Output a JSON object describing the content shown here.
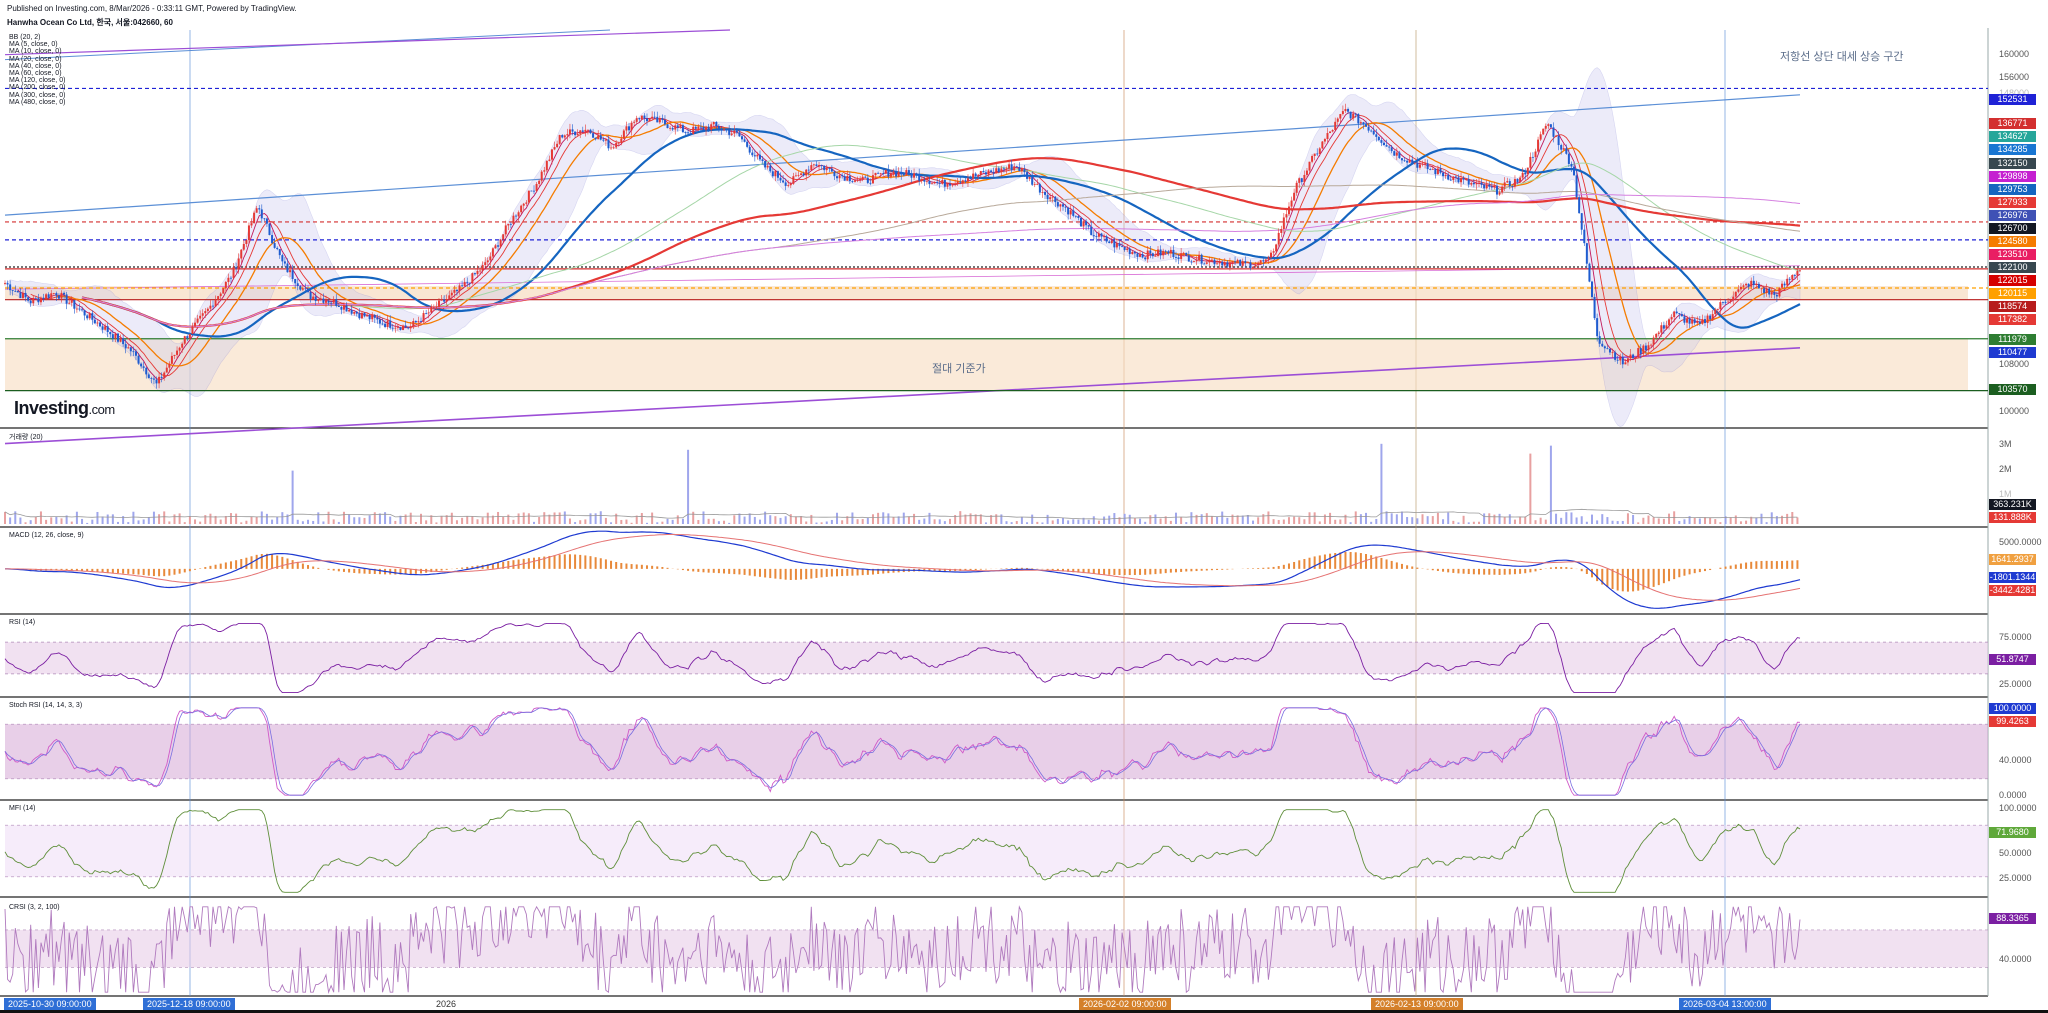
{
  "header": {
    "published": "Published on Investing.com, 8/Mar/2026 - 0:33:11 GMT, Powered by TradingView.",
    "symbol": "Hanwha Ocean Co Ltd, 한국, 서울:042660, 60"
  },
  "legend": [
    "BB (20, 2)",
    "MA (5, close, 0)",
    "MA (10, close, 0)",
    "MA (20, close, 0)",
    "MA (40, close, 0)",
    "MA (60, close, 0)",
    "MA (120, close, 0)",
    "MA (200, close, 0)",
    "MA (300, close, 0)",
    "MA (480, close, 0)"
  ],
  "logo": {
    "brand": "Investing",
    "suffix": ".com"
  },
  "annotations": {
    "upper": "저항선 상단 대세 상승 구간",
    "lower": "절대 기준가"
  },
  "pane_titles": {
    "volume": "거래량 (20)",
    "macd": "MACD (12, 26, close, 9)",
    "rsi": "RSI (14)",
    "stoch": "Stoch RSI (14, 14, 3, 3)",
    "mfi": "MFI (14)",
    "crsi": "CRSI (3, 2, 100)"
  },
  "price_axis": [
    "160000",
    "156000",
    "148000",
    "108000",
    "100000"
  ],
  "price_badges": [
    {
      "text": "152531",
      "color": "#1f22d6"
    },
    {
      "text": "136771",
      "color": "#d32f2f"
    },
    {
      "text": "134627",
      "color": "#26a69a"
    },
    {
      "text": "134285",
      "color": "#1976d2"
    },
    {
      "text": "132150",
      "color": "#37474f"
    },
    {
      "text": "129898",
      "color": "#c51fd1"
    },
    {
      "text": "129753",
      "color": "#1565c0"
    },
    {
      "text": "127933",
      "color": "#e53935"
    },
    {
      "text": "126976",
      "color": "#3f51b5"
    },
    {
      "text": "126700",
      "color": "#131722"
    },
    {
      "text": "124580",
      "color": "#f57c00"
    },
    {
      "text": "123510",
      "color": "#e91e63"
    },
    {
      "text": "122100",
      "color": "#37474f"
    },
    {
      "text": "122015",
      "color": "#d50000"
    },
    {
      "text": "120115",
      "color": "#ffa000"
    },
    {
      "text": "118574",
      "color": "#b71c1c"
    },
    {
      "text": "117382",
      "color": "#e53935"
    },
    {
      "text": "111979",
      "color": "#2e7d32"
    },
    {
      "text": "110477",
      "color": "#1e3ad1"
    },
    {
      "text": "103570",
      "color": "#1b5e20"
    }
  ],
  "volume_axis": [
    "3M",
    "2M",
    "1M"
  ],
  "volume_badges": [
    {
      "text": "363.231K",
      "color": "#131722"
    },
    {
      "text": "131.888K",
      "color": "#e53935"
    }
  ],
  "macd_axis": [
    "5000.0000"
  ],
  "macd_badges": [
    {
      "text": "1641.2937",
      "color": "#f0a040"
    },
    {
      "text": "-1801.1344",
      "color": "#1e3ad1"
    },
    {
      "text": "-3442.4281",
      "color": "#e53935"
    }
  ],
  "rsi_axis": [
    "75.0000",
    "25.0000"
  ],
  "rsi_badges": [
    {
      "text": "51.8747",
      "color": "#7b1fa2"
    }
  ],
  "stoch_axis": [
    "40.0000",
    "0.0000"
  ],
  "stoch_badges": [
    {
      "text": "100.0000",
      "color": "#1e3ad1"
    },
    {
      "text": "99.4263",
      "color": "#e53935"
    }
  ],
  "mfi_axis": [
    "100.0000",
    "50.0000",
    "25.0000"
  ],
  "mfi_badges": [
    {
      "text": "71.9680",
      "color": "#5fa83a"
    }
  ],
  "crsi_axis": [
    "40.0000"
  ],
  "crsi_badges": [
    {
      "text": "88.3365",
      "color": "#7b1fa2"
    }
  ],
  "x_axis": [
    {
      "text": "2025-10-30 09:00:00",
      "highlight": true,
      "color": "#2f6fd6"
    },
    {
      "text": "2025-12-18 09:00:00",
      "highlight": true,
      "color": "#2f6fd6"
    },
    {
      "text": "2026",
      "highlight": false,
      "color": ""
    },
    {
      "text": "2026-02-02 09:00:00",
      "highlight": true,
      "color": "#d4802a"
    },
    {
      "text": "2026-02-13 09:00:00",
      "highlight": true,
      "color": "#d4802a"
    },
    {
      "text": "2026-03-04 13:00:00",
      "highlight": true,
      "color": "#2f6fd6"
    }
  ],
  "chart_data": {
    "type": "line",
    "title": "Hanwha Ocean Co Ltd, 한국, 서울:042660, 60",
    "ylim": [
      98000,
      162000
    ],
    "price_path_close": [
      121000,
      118000,
      119500,
      116500,
      113500,
      110000,
      104500,
      111500,
      116500,
      122500,
      133500,
      124000,
      119000,
      118000,
      116000,
      114500,
      113800,
      117000,
      120000,
      124000,
      131000,
      137000,
      145000,
      146000,
      143000,
      148000,
      147000,
      145500,
      146500,
      145000,
      140000,
      137000,
      140500,
      138500,
      137500,
      139000,
      138500,
      137000,
      138000,
      139000,
      140000,
      136000,
      133000,
      129000,
      127000,
      125500,
      126000,
      125000,
      124500,
      124000,
      124500,
      136000,
      143000,
      149000,
      146000,
      142000,
      140000,
      138500,
      137000,
      136000,
      138000,
      147000,
      140000,
      112000,
      108000,
      111000,
      116000,
      114000,
      118000,
      121000,
      119000,
      123500
    ],
    "horizontal_levels": [
      152531,
      130900,
      128000,
      123600,
      123300,
      120200,
      118300,
      111979,
      103570
    ],
    "volume_scale": [
      0,
      3500000
    ],
    "macd_scale": [
      -8000,
      7000
    ],
    "oscillator_scale": [
      0,
      100
    ],
    "last": {
      "volume": "363.231K",
      "volume_ma": "131.888K",
      "macd_hist": 1641.2937,
      "macd": -1801.1344,
      "signal": -3442.4281,
      "rsi": 51.8747,
      "stoch_k": 100.0,
      "stoch_d": 99.4263,
      "mfi": 71.968,
      "crsi": 88.3365
    }
  }
}
